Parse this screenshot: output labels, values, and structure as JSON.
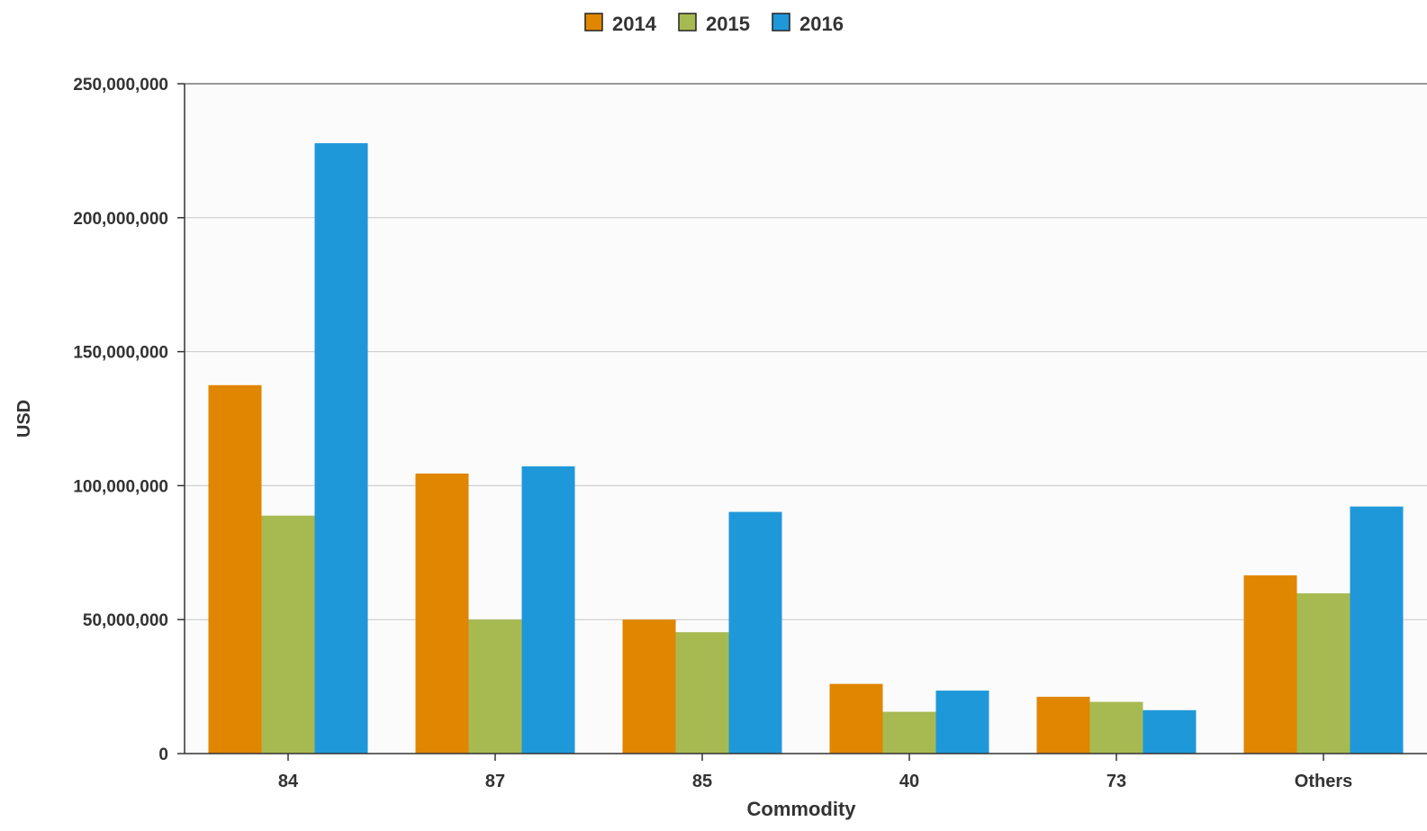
{
  "chart_data": {
    "type": "bar",
    "xlabel": "Commodity",
    "ylabel": "USD",
    "ylim": [
      0,
      250000000
    ],
    "yticks": [
      0,
      50000000,
      100000000,
      150000000,
      200000000,
      250000000
    ],
    "ytick_labels": [
      "0",
      "50,000,000",
      "100,000,000",
      "150,000,000",
      "200,000,000",
      "250,000,000"
    ],
    "grid": true,
    "legend_position": "top-center",
    "categories": [
      "84",
      "87",
      "85",
      "40",
      "73",
      "Others"
    ],
    "series": [
      {
        "name": "2014",
        "color": "#e08600",
        "values": [
          137500000,
          104500000,
          50000000,
          26000000,
          21200000,
          66500000
        ]
      },
      {
        "name": "2015",
        "color": "#a7ba52",
        "values": [
          88800000,
          50000000,
          45300000,
          15600000,
          19300000,
          59800000
        ]
      },
      {
        "name": "2016",
        "color": "#1f98d9",
        "values": [
          227800000,
          107200000,
          90200000,
          23500000,
          16200000,
          92200000
        ]
      }
    ]
  }
}
